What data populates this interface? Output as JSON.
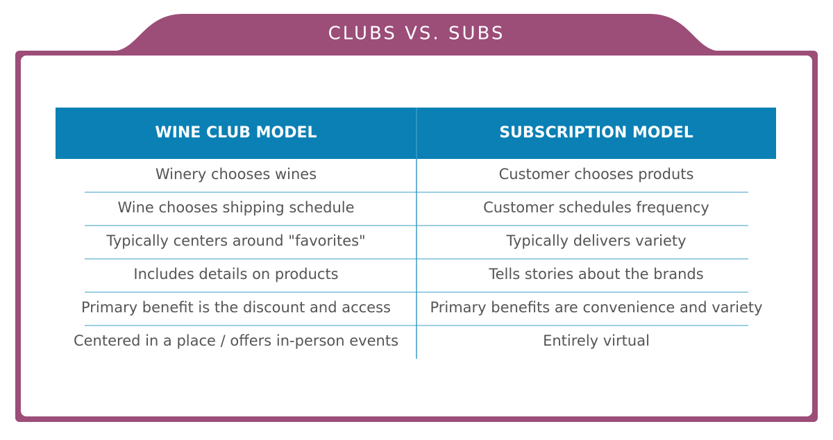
{
  "title": "CLUBS VS. SUBS",
  "table": {
    "header": [
      "WINE CLUB MODEL",
      "SUBSCRIPTION MODEL"
    ],
    "rows": [
      [
        "Winery chooses wines",
        "Customer chooses produts"
      ],
      [
        "Wine chooses shipping schedule",
        "Customer schedules frequency"
      ],
      [
        "Typically centers around \"favorites\"",
        "Typically delivers variety"
      ],
      [
        "Includes details on products",
        "Tells stories about the brands"
      ],
      [
        "Primary benefit is the discount and access",
        "Primary benefits are convenience and variety"
      ],
      [
        "Centered in a place / offers in-person events",
        "Entirely virtual"
      ]
    ]
  }
}
